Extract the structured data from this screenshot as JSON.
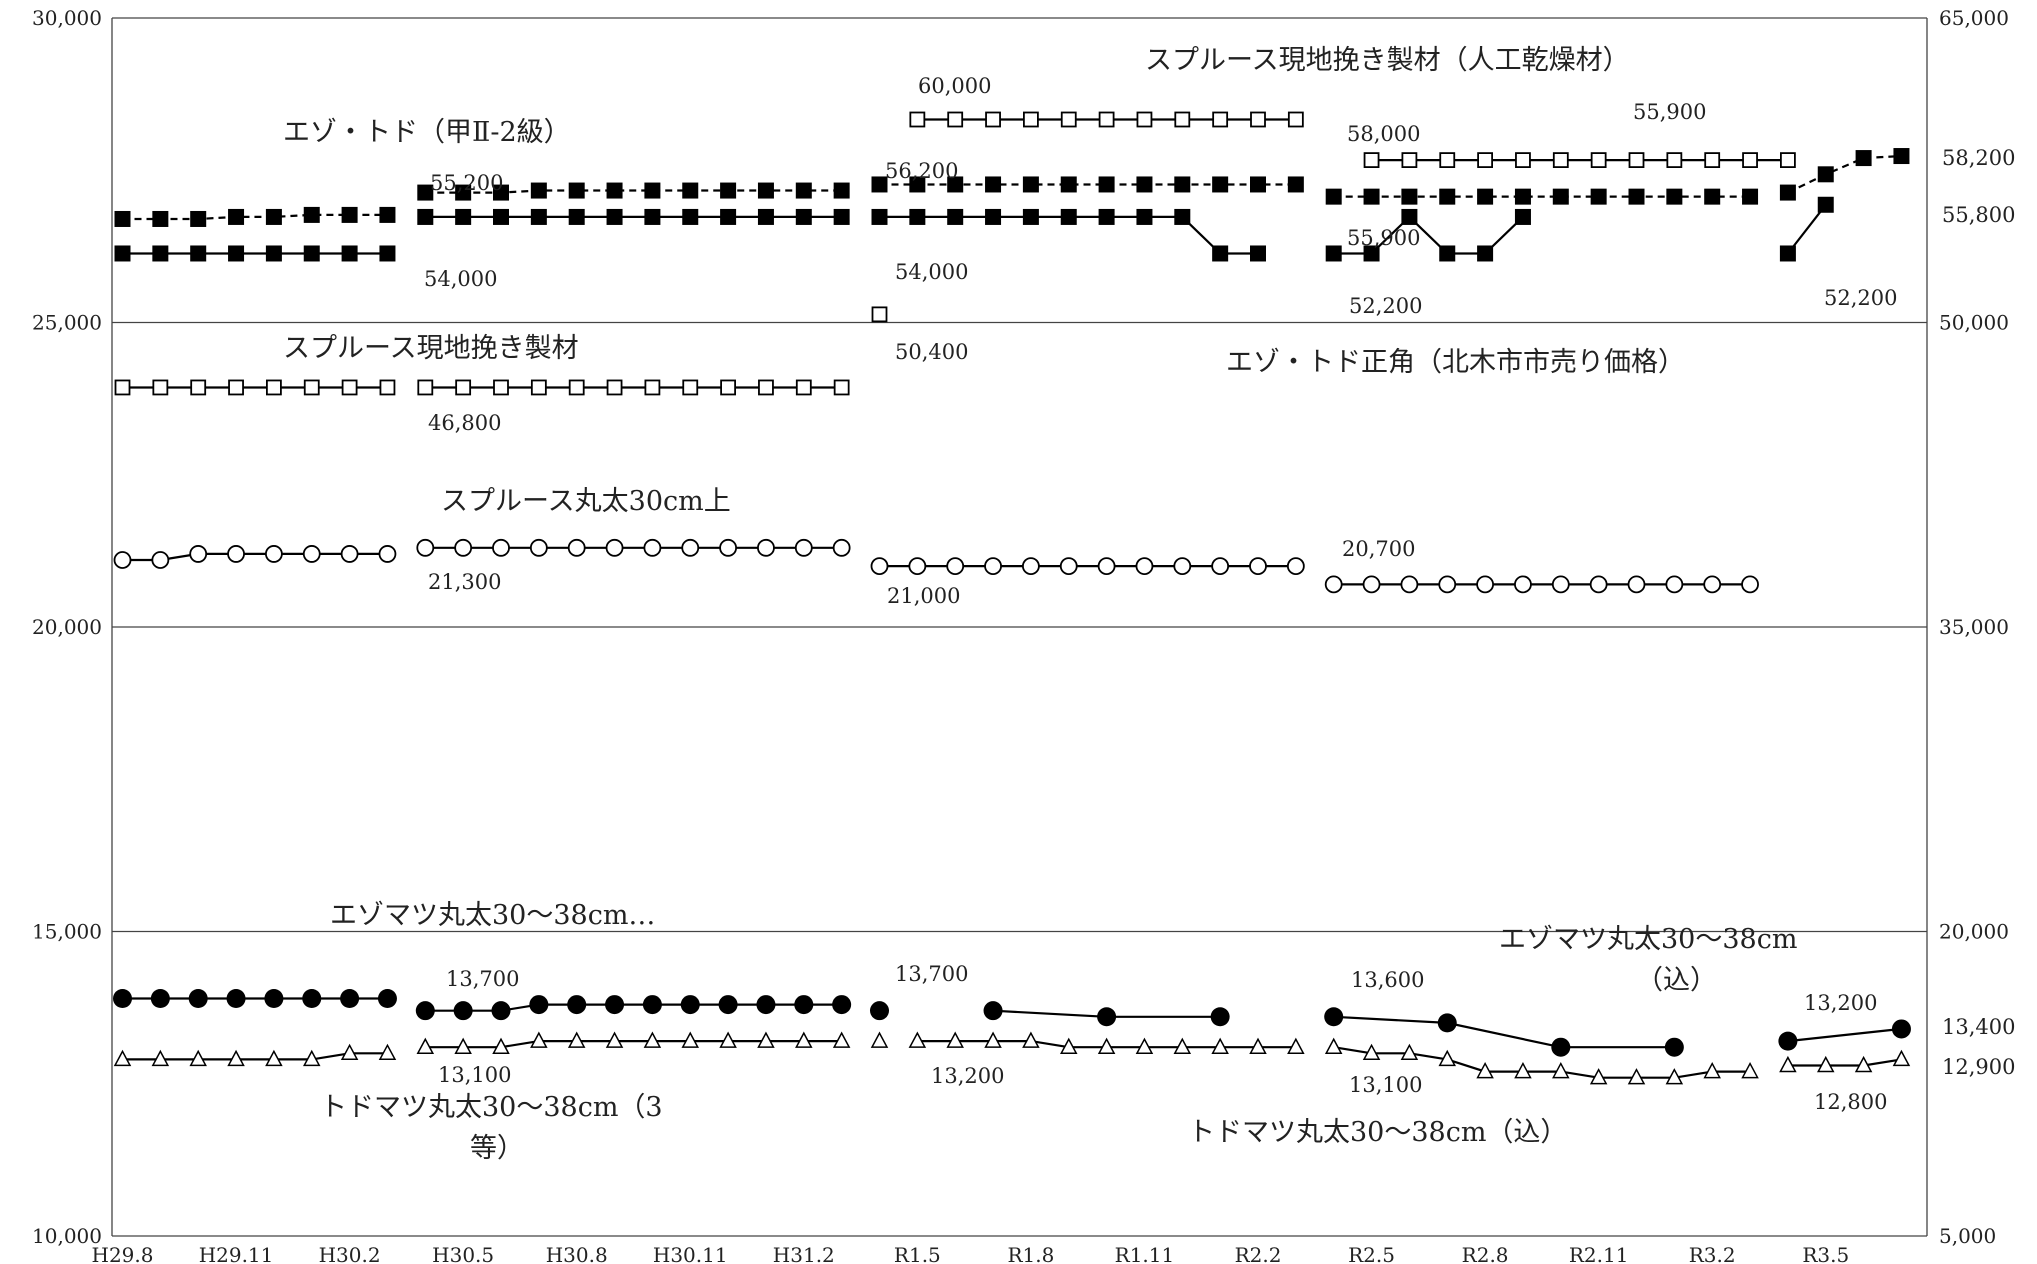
{
  "chart_data": {
    "type": "line",
    "x_labels": [
      "H29.8",
      "H29.11",
      "H30.2",
      "H30.5",
      "H30.8",
      "H30.11",
      "H31.2",
      "R1.5",
      "R1.8",
      "R1.11",
      "R2.2",
      "R2.5",
      "R2.8",
      "R2.11",
      "R3.2",
      "R3.5"
    ],
    "left_axis": {
      "min": 10000,
      "max": 30000,
      "ticks": [
        "10,000",
        "15,000",
        "20,000",
        "25,000",
        "30,000"
      ]
    },
    "right_axis": {
      "min": 5000,
      "max": 65000,
      "ticks": [
        "5,000",
        "20,000",
        "35,000",
        "50,000",
        "65,000"
      ]
    },
    "grid": "horizontal",
    "series": [
      {
        "name": "スプルース現地挽き製材（人工乾燥材）",
        "axis": "right",
        "marker": "square-open",
        "line": "solid",
        "segments": [
          {
            "start": 21,
            "values": [
              60000,
              60000,
              60000,
              60000,
              60000,
              60000,
              60000,
              60000,
              60000,
              60000,
              60000
            ]
          },
          {
            "start": 33,
            "values": [
              58000,
              58000,
              58000,
              58000,
              58000,
              58000,
              58000,
              58000,
              58000,
              58000,
              58000,
              58000
            ]
          }
        ]
      },
      {
        "name": "エゾ・トド（甲Ⅱ-2級）",
        "axis": "right",
        "marker": "square-filled",
        "line": "dashed",
        "segments": [
          {
            "start": 0,
            "values": [
              55100,
              55100,
              55100,
              55200,
              55200,
              55300,
              55300,
              55300
            ]
          },
          {
            "start": 8,
            "values": [
              56400,
              56400,
              56400,
              56500,
              56500,
              56500,
              56500,
              56500,
              56500,
              56500,
              56500,
              56500
            ]
          },
          {
            "start": 20,
            "values": [
              56800,
              56800,
              56800,
              56800,
              56800,
              56800,
              56800,
              56800,
              56800,
              56800,
              56800,
              56800
            ]
          },
          {
            "start": 32,
            "values": [
              56200,
              56200,
              56200,
              56200,
              56200,
              56200,
              56200,
              56200,
              56200,
              56200,
              56200,
              56200
            ]
          },
          {
            "start": 44,
            "values": [
              56400,
              57300,
              58100,
              58200
            ]
          }
        ]
      },
      {
        "name": "エゾ・トド正角（北木市市売り価格）",
        "axis": "right",
        "marker": "square-filled",
        "line": "solid",
        "segments": [
          {
            "start": 0,
            "values": [
              53400,
              53400,
              53400,
              53400,
              53400,
              53400,
              53400,
              53400
            ]
          },
          {
            "start": 8,
            "values": [
              55200,
              55200,
              55200,
              55200,
              55200,
              55200,
              55200,
              55200,
              55200,
              55200,
              55200,
              55200
            ]
          },
          {
            "start": 20,
            "values": [
              55200,
              55200,
              55200,
              55200,
              55200,
              55200,
              55200,
              55200,
              55200,
              53400,
              53400
            ]
          },
          {
            "start": 32,
            "values": [
              53400,
              53400,
              55200,
              53400,
              53400,
              55200
            ]
          },
          {
            "start": 44,
            "values": [
              53400,
              55800
            ]
          }
        ]
      },
      {
        "name": "スプルース現地挽き製材",
        "axis": "right",
        "marker": "square-open",
        "line": "solid",
        "segments": [
          {
            "start": 0,
            "values": [
              46800,
              46800,
              46800,
              46800,
              46800,
              46800,
              46800,
              46800
            ]
          },
          {
            "start": 8,
            "values": [
              46800,
              46800,
              46800,
              46800,
              46800,
              46800,
              46800,
              46800,
              46800,
              46800,
              46800,
              46800
            ]
          },
          {
            "start": 20,
            "values": [
              50400
            ]
          }
        ]
      },
      {
        "name": "スプルース丸太30cm上",
        "axis": "left",
        "marker": "circle-open",
        "line": "solid",
        "segments": [
          {
            "start": 0,
            "values": [
              21100,
              21100,
              21200,
              21200,
              21200,
              21200,
              21200,
              21200
            ]
          },
          {
            "start": 8,
            "values": [
              21300,
              21300,
              21300,
              21300,
              21300,
              21300,
              21300,
              21300,
              21300,
              21300,
              21300,
              21300
            ]
          },
          {
            "start": 20,
            "values": [
              21000,
              21000,
              21000,
              21000,
              21000,
              21000,
              21000,
              21000,
              21000,
              21000,
              21000,
              21000
            ]
          },
          {
            "start": 32,
            "values": [
              20700,
              20700,
              20700,
              20700,
              20700,
              20700,
              20700,
              20700,
              20700,
              20700,
              20700,
              20700
            ]
          }
        ]
      },
      {
        "name": "エゾマツ丸太30～38cm（込）",
        "axis": "left",
        "marker": "circle-filled",
        "line": "solid",
        "segments": [
          {
            "start": 0,
            "values": [
              13900,
              13900,
              13900,
              13900,
              13900,
              13900,
              13900,
              13900
            ]
          },
          {
            "start": 8,
            "values": [
              13700,
              13700,
              13700,
              13800,
              13800,
              13800,
              13800,
              13800,
              13800,
              13800,
              13800,
              13800
            ]
          },
          {
            "start": 20,
            "values": [
              13700
            ]
          },
          {
            "start": 23,
            "x_step": 3,
            "values": [
              13700,
              13600,
              13600
            ]
          },
          {
            "start": 32,
            "x_step": 3,
            "values": [
              13600,
              13500,
              13100,
              13100
            ]
          },
          {
            "start": 44,
            "x_step": 3,
            "values": [
              13200,
              13400
            ]
          }
        ]
      },
      {
        "name": "トドマツ丸太30～38cm（込）",
        "axis": "left",
        "marker": "triangle-open",
        "line": "solid",
        "segments": [
          {
            "start": 0,
            "values": [
              12900,
              12900,
              12900,
              12900,
              12900,
              12900,
              13000,
              13000
            ]
          },
          {
            "start": 8,
            "values": [
              13100,
              13100,
              13100,
              13200,
              13200,
              13200,
              13200,
              13200,
              13200,
              13200,
              13200,
              13200
            ]
          },
          {
            "start": 20,
            "values": [
              13200
            ]
          },
          {
            "start": 21,
            "values": [
              13200,
              13200,
              13200,
              13200,
              13100,
              13100,
              13100,
              13100,
              13100,
              13100,
              13100
            ]
          },
          {
            "start": 32,
            "values": [
              13100,
              13000,
              13000,
              12900,
              12700,
              12700,
              12700,
              12600,
              12600,
              12600,
              12700,
              12700
            ]
          },
          {
            "start": 44,
            "values": [
              12800,
              12800,
              12800,
              12900
            ]
          }
        ]
      }
    ],
    "series_labels": [
      {
        "text": "スプルース現地挽き製材（人工乾燥材）"
      },
      {
        "text": "エゾ・トド（甲Ⅱ-2級）"
      },
      {
        "text": "スプルース現地挽き製材"
      },
      {
        "text": "エゾ・トド正角（北木市市売り価格）"
      },
      {
        "text": "スプルース丸太30cm上"
      },
      {
        "text": "エゾマツ丸太30～38cm…"
      },
      {
        "text": "エゾマツ丸太30～38cm"
      },
      {
        "text": "（込）"
      },
      {
        "text": "トドマツ丸太30～38cm（3"
      },
      {
        "text": "等）"
      },
      {
        "text": "トドマツ丸太30～38cm（込）"
      }
    ],
    "data_labels": [
      "60,000",
      "55,900",
      "58,000",
      "55,200",
      "56,200",
      "54,000",
      "54,000",
      "55,900",
      "52,200",
      "52,200",
      "50,400",
      "46,800",
      "21,300",
      "21,000",
      "20,700",
      "13,700",
      "13,700",
      "13,600",
      "13,200",
      "13,100",
      "13,200",
      "13,100",
      "12,800",
      "58,200",
      "55,800",
      "13,400",
      "12,900"
    ]
  }
}
